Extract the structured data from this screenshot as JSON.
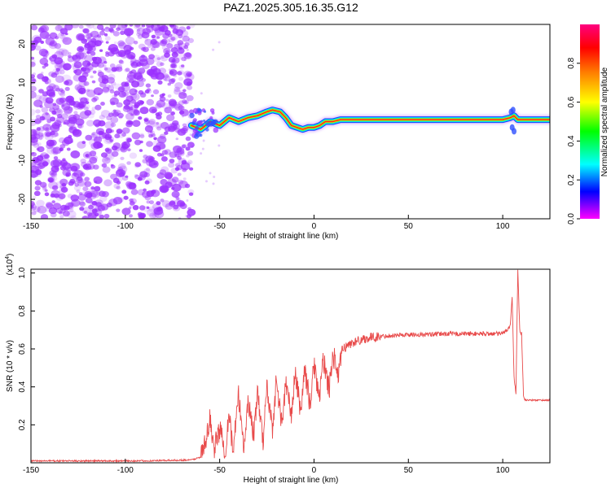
{
  "figure_title": "PAZ1.2025.305.16.35.G12",
  "colors": {
    "snr_line": "#e84a4a",
    "noise_dot": "#9b30ff",
    "axis": "#000000"
  },
  "chart_data": [
    {
      "type": "heatmap",
      "xlabel": "Height of straight line (km)",
      "ylabel": "Frequency (Hz)",
      "xlim": [
        -150,
        125
      ],
      "ylim": [
        -25,
        25
      ],
      "xticks": [
        -150,
        -100,
        -50,
        0,
        50,
        100
      ],
      "yticks": [
        -20,
        -10,
        0,
        10,
        20
      ],
      "colorbar_label": "Normalized spectral amplitude",
      "colorbar_ticks": [
        "0.0",
        "0.2",
        "0.4",
        "0.6",
        "0.8"
      ],
      "colorbar_range": [
        0,
        1
      ],
      "colormap": [
        "#ff00ff",
        "#0000ff",
        "#00ffff",
        "#00ff00",
        "#ffff00",
        "#ff8000",
        "#ff0000",
        "#ff0080"
      ],
      "noise_region_x": [
        -150,
        -65
      ],
      "ridge": {
        "x": [
          -65,
          -60,
          -55,
          -50,
          -45,
          -40,
          -35,
          -30,
          -25,
          -22,
          -18,
          -15,
          -12,
          -9,
          -6,
          -3,
          0,
          3,
          6,
          10,
          14,
          30,
          60,
          100,
          104,
          106,
          108,
          112,
          125
        ],
        "y": [
          -1,
          -2,
          0,
          -1,
          1,
          0,
          1,
          1.5,
          2.5,
          3,
          2.5,
          1,
          -1,
          -1.5,
          -2,
          -1.5,
          -1.5,
          -1,
          0,
          0,
          0.5,
          0.5,
          0.5,
          0.5,
          1,
          1.5,
          0.5,
          0.5,
          0.5
        ]
      }
    },
    {
      "type": "line",
      "xlabel": "Height of straight line (km)",
      "ylabel": "SNR (10 * v/v)",
      "multiplier_label": "(x10",
      "multiplier_exp": "4",
      "multiplier_close": ")",
      "xlim": [
        -150,
        125
      ],
      "ylim": [
        0,
        1.02
      ],
      "xticks": [
        -150,
        -100,
        -50,
        0,
        50,
        100
      ],
      "yticks": [
        0.2,
        0.4,
        0.6,
        0.8,
        1.0
      ],
      "ytick_labels": [
        "0.2",
        "0.4",
        "0.6",
        "0.8",
        "1.0"
      ],
      "series": [
        {
          "name": "SNR",
          "x": [
            -150,
            -120,
            -90,
            -65,
            -60,
            -57,
            -55,
            -53,
            -50,
            -47,
            -45,
            -43,
            -40,
            -37,
            -35,
            -32,
            -30,
            -27,
            -25,
            -22,
            -20,
            -17,
            -15,
            -12,
            -10,
            -7,
            -5,
            -2,
            0,
            3,
            5,
            8,
            10,
            13,
            15,
            20,
            25,
            30,
            40,
            50,
            60,
            70,
            80,
            90,
            100,
            104,
            105,
            106,
            107,
            108,
            109,
            110,
            111,
            112,
            115,
            120,
            125
          ],
          "y": [
            0.01,
            0.01,
            0.01,
            0.015,
            0.03,
            0.12,
            0.24,
            0.07,
            0.18,
            0.06,
            0.28,
            0.05,
            0.35,
            0.08,
            0.33,
            0.15,
            0.36,
            0.12,
            0.4,
            0.18,
            0.43,
            0.2,
            0.42,
            0.25,
            0.47,
            0.27,
            0.5,
            0.3,
            0.52,
            0.34,
            0.55,
            0.38,
            0.58,
            0.45,
            0.6,
            0.63,
            0.65,
            0.66,
            0.67,
            0.675,
            0.675,
            0.68,
            0.68,
            0.68,
            0.68,
            0.72,
            0.88,
            0.45,
            0.36,
            1.02,
            0.7,
            0.68,
            0.36,
            0.33,
            0.33,
            0.33,
            0.33
          ]
        }
      ]
    }
  ]
}
